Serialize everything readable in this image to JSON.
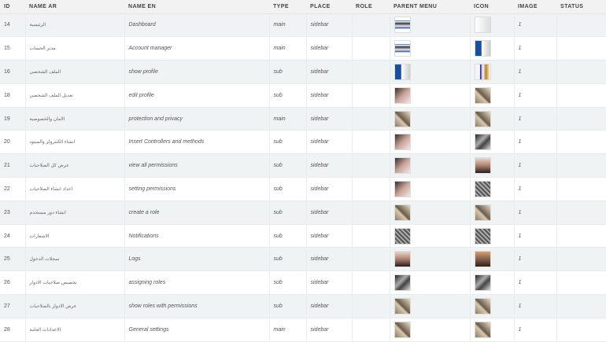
{
  "columns": [
    "ID",
    "NAME AR",
    "NAME EN",
    "TYPE",
    "PLACE",
    "ROLE",
    "PARENT MENU",
    "ICON",
    "IMAGE",
    "STATUS"
  ],
  "rows": [
    {
      "id": "14",
      "name_ar": "الرئيسية",
      "name_en": "Dashboard",
      "type": "main",
      "place": "sidebar",
      "parent": "t1",
      "icon": "t9",
      "image": "1"
    },
    {
      "id": "15",
      "name_ar": "مدير الحساب",
      "name_en": "Account manager",
      "type": "main",
      "place": "sidebar",
      "parent": "t1",
      "icon": "t2",
      "image": "1"
    },
    {
      "id": "16",
      "name_ar": "الملف الشخصي",
      "name_en": "show profile",
      "type": "sub",
      "place": "sidebar",
      "parent": "t2",
      "icon": "t10",
      "image": "1"
    },
    {
      "id": "18",
      "name_ar": "تعديل الملف الشخصي",
      "name_en": "edit profile",
      "type": "sub",
      "place": "sidebar",
      "parent": "t3",
      "icon": "t4",
      "image": "1"
    },
    {
      "id": "19",
      "name_ar": "الامان والخصوصية",
      "name_en": "protection and privacy",
      "type": "main",
      "place": "sidebar",
      "parent": "t4",
      "icon": "t4",
      "image": "1"
    },
    {
      "id": "20",
      "name_ar": "انشاء الكنترولر والميثود",
      "name_en": "Insert Controllers and methods",
      "type": "sub",
      "place": "sidebar",
      "parent": "t3",
      "icon": "t5",
      "image": "1"
    },
    {
      "id": "21",
      "name_ar": "عرض كل الصلاحيات",
      "name_en": "view all permissions",
      "type": "sub",
      "place": "sidebar",
      "parent": "t3",
      "icon": "t6",
      "image": "1"
    },
    {
      "id": "22",
      "name_ar": "اعداد انشاء الصلاحيات",
      "name_en": "setting permissions",
      "type": "sub",
      "place": "sidebar",
      "parent": "t3",
      "icon": "t7",
      "image": "1"
    },
    {
      "id": "23",
      "name_ar": "انشاء دور مستخدم",
      "name_en": "create a role",
      "type": "sub",
      "place": "sidebar",
      "parent": "t4",
      "icon": "t4",
      "image": "1"
    },
    {
      "id": "24",
      "name_ar": "الاشعارات",
      "name_en": "Notifications",
      "type": "sub",
      "place": "sidebar",
      "parent": "t7",
      "icon": "t7",
      "image": "1"
    },
    {
      "id": "25",
      "name_ar": "سجلات الدخول",
      "name_en": "Logs",
      "type": "sub",
      "place": "sidebar",
      "parent": "t6",
      "icon": "t8",
      "image": "1"
    },
    {
      "id": "26",
      "name_ar": "تخصيص صلاحيات الادوار",
      "name_en": "assigning roles",
      "type": "sub",
      "place": "sidebar",
      "parent": "t5",
      "icon": "t5",
      "image": "1"
    },
    {
      "id": "27",
      "name_ar": "عرض الادوار بالصلاحيات",
      "name_en": "show roles with permissions",
      "type": "sub",
      "place": "sidebar",
      "parent": "t4",
      "icon": "t4",
      "image": "1"
    },
    {
      "id": "28",
      "name_ar": "الاعدادات العامة",
      "name_en": "General settings",
      "type": "main",
      "place": "sidebar",
      "parent": "t4",
      "icon": "t4",
      "image": "1"
    }
  ]
}
